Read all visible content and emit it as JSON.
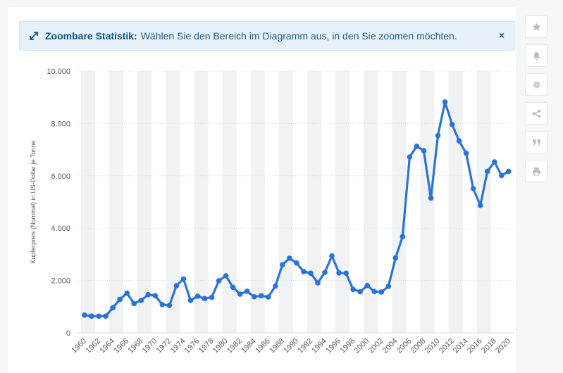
{
  "banner": {
    "title": "Zoombare Statistik:",
    "message": "Wählen Sie den Bereich im Diagramm aus, in den Sie zoomen möchten.",
    "close": "×"
  },
  "sidebar_tools": [
    "star-icon",
    "bell-icon",
    "gear-icon",
    "share-icon",
    "quote-icon",
    "print-icon"
  ],
  "colors": {
    "line": "#2a73d9",
    "band": "#f1f2f4",
    "grid": "#d9dde2"
  },
  "chart_data": {
    "type": "line",
    "title": "",
    "xlabel": "",
    "ylabel": "Kupferpreis (Nominal) in US-Dollar je Tonne",
    "ylim": [
      0,
      10000
    ],
    "yticks": [
      0,
      2000,
      4000,
      6000,
      8000,
      10000
    ],
    "ytick_labels": [
      "0",
      "2.000",
      "4.000",
      "6.000",
      "8.000",
      "10.000"
    ],
    "xtick_labels": [
      "1960",
      "1962",
      "1964",
      "1966",
      "1968",
      "1970",
      "1972",
      "1974",
      "1976",
      "1978",
      "1980",
      "1982",
      "1984",
      "1986",
      "1988",
      "1990",
      "1992",
      "1994",
      "1996",
      "1998",
      "2000",
      "2002",
      "2004",
      "2006",
      "2008",
      "2010",
      "2012",
      "2014",
      "2016",
      "2018",
      "2020"
    ],
    "grid": true,
    "x": [
      1960,
      1961,
      1962,
      1963,
      1964,
      1965,
      1966,
      1967,
      1968,
      1969,
      1970,
      1971,
      1972,
      1973,
      1974,
      1975,
      1976,
      1977,
      1978,
      1979,
      1980,
      1981,
      1982,
      1983,
      1984,
      1985,
      1986,
      1987,
      1988,
      1989,
      1990,
      1991,
      1992,
      1993,
      1994,
      1995,
      1996,
      1997,
      1998,
      1999,
      2000,
      2001,
      2002,
      2003,
      2004,
      2005,
      2006,
      2007,
      2008,
      2009,
      2010,
      2011,
      2012,
      2013,
      2014,
      2015,
      2016,
      2017,
      2018,
      2019,
      2020
    ],
    "series": [
      {
        "values": [
          680,
          640,
          640,
          640,
          960,
          1280,
          1520,
          1120,
          1240,
          1460,
          1420,
          1080,
          1050,
          1800,
          2060,
          1240,
          1400,
          1310,
          1360,
          1990,
          2180,
          1740,
          1480,
          1590,
          1380,
          1420,
          1370,
          1790,
          2600,
          2850,
          2670,
          2340,
          2280,
          1910,
          2310,
          2940,
          2290,
          2280,
          1660,
          1570,
          1810,
          1580,
          1560,
          1780,
          2860,
          3680,
          6720,
          7130,
          6960,
          5150,
          7540,
          8820,
          7960,
          7330,
          6860,
          5510,
          4870,
          6170,
          6530,
          6010,
          6170
        ]
      }
    ]
  }
}
